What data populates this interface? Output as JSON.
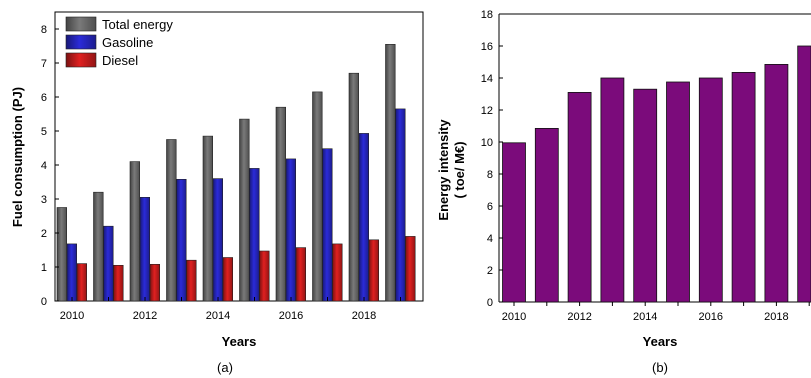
{
  "chart_data": [
    {
      "type": "bar",
      "panel_label": "(a)",
      "xlabel": "Years",
      "ylabel": "Fuel consumption (PJ)",
      "categories": [
        "2010",
        "2011",
        "2012",
        "2013",
        "2014",
        "2015",
        "2016",
        "2017",
        "2018",
        "2019"
      ],
      "x_tick_labels": [
        "2010",
        "2012",
        "2014",
        "2016",
        "2018"
      ],
      "y_tick_labels": [
        "0",
        "1",
        "2",
        "3",
        "4",
        "5",
        "6",
        "7",
        "8"
      ],
      "ylim": [
        0,
        8.5
      ],
      "legend_position": "top-left",
      "series": [
        {
          "name": "Total energy",
          "color": "#7a7a7a",
          "values": [
            2.75,
            3.2,
            4.1,
            4.75,
            4.85,
            5.35,
            5.7,
            6.15,
            6.7,
            7.55
          ]
        },
        {
          "name": "Gasoline",
          "color": "#2b2bd9",
          "values": [
            1.68,
            2.2,
            3.05,
            3.58,
            3.6,
            3.9,
            4.18,
            4.48,
            4.93,
            5.65
          ]
        },
        {
          "name": "Diesel",
          "color": "#e02020",
          "values": [
            1.1,
            1.05,
            1.08,
            1.2,
            1.28,
            1.47,
            1.57,
            1.68,
            1.8,
            1.9
          ]
        }
      ]
    },
    {
      "type": "bar",
      "panel_label": "(b)",
      "xlabel": "Years",
      "ylabel": "Energy intensity",
      "ylabel_line2": "( toe/ M€)",
      "categories": [
        "2010",
        "2011",
        "2012",
        "2013",
        "2014",
        "2015",
        "2016",
        "2017",
        "2018",
        "2019"
      ],
      "x_tick_labels": [
        "2010",
        "2012",
        "2014",
        "2016",
        "2018"
      ],
      "y_tick_labels": [
        "0",
        "2",
        "4",
        "6",
        "8",
        "10",
        "12",
        "14",
        "16",
        "18"
      ],
      "ylim": [
        0,
        18
      ],
      "series": [
        {
          "color": "#7b0b7b",
          "values": [
            9.95,
            10.85,
            13.1,
            14.0,
            13.3,
            13.75,
            14.0,
            14.35,
            14.85,
            16.0
          ]
        }
      ]
    }
  ]
}
